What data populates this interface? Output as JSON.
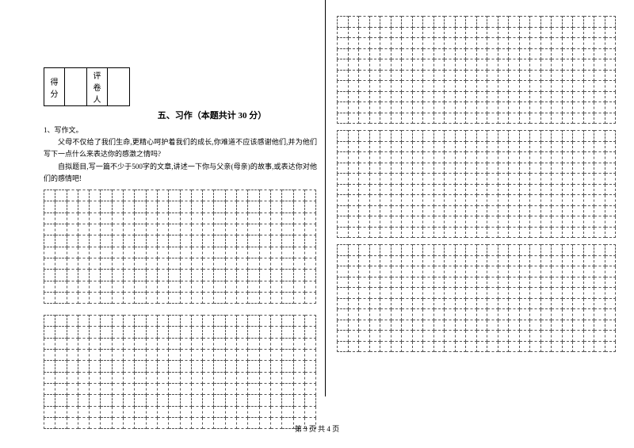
{
  "scorebox": {
    "score_label": "得分",
    "grader_label": "评卷人"
  },
  "section": {
    "title": "五、习作（本题共计 30 分）"
  },
  "question": {
    "number": "1、写作文。",
    "para1": "父母不仅给了我们生命,更精心呵护着我们的成长,你难道不应该感谢他们,并为他们写下一点什么来表达你的感激之情吗?",
    "para2": "自拟题目,写一篇不少于500字的文章,讲述一下你与父亲(母亲)的故事,或表达你对他们的感情吧!"
  },
  "left_grids": {
    "cols": 24,
    "block1_rows": 10,
    "block2_rows": 10
  },
  "right_grids": {
    "cols": 26,
    "block1_rows": 10,
    "block2_rows": 10,
    "block3_rows": 10
  },
  "footer": "第 3 页 共 4 页",
  "style": {
    "grid_border": "dashed",
    "grid_color": "#555555"
  }
}
